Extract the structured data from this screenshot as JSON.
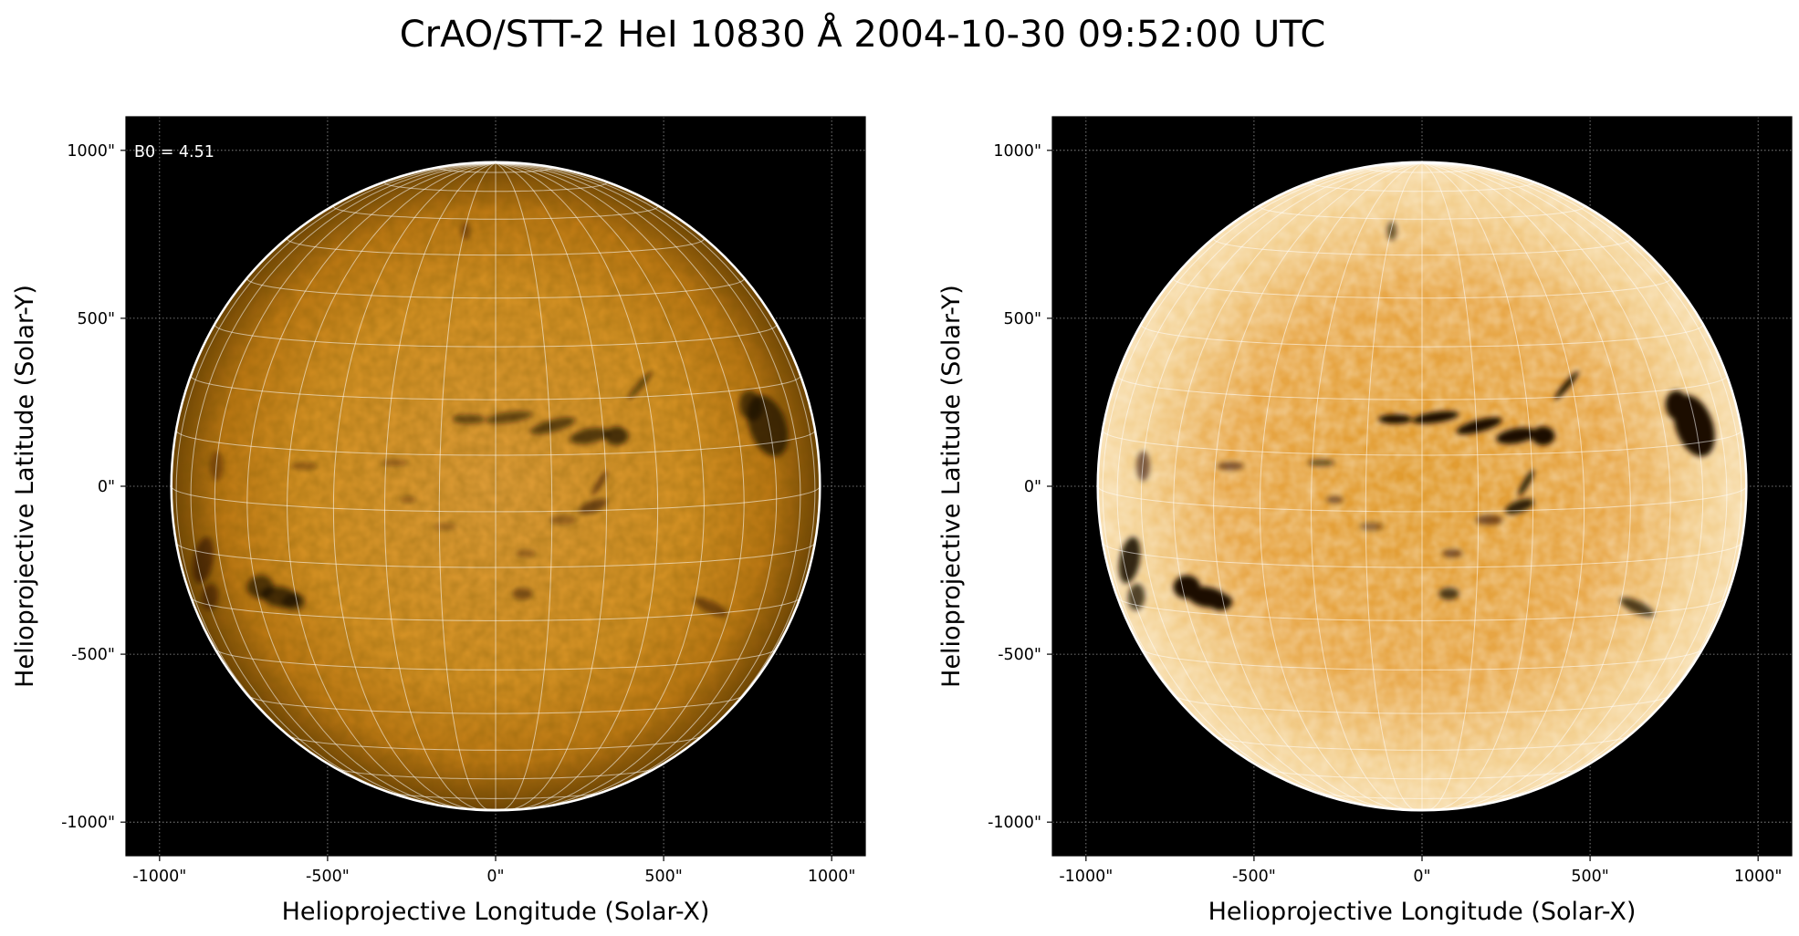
{
  "figure": {
    "title": "CrAO/STT-2 HeI 10830 Å 2004-10-30 09:52:00 UTC"
  },
  "colors": {
    "background": "#000000",
    "disk_center": "#e7a235",
    "disk_limb": "#6e4304",
    "filament": "#1a0b00",
    "limb_circle": "#ffffff",
    "coord_grid": "#ffffff"
  },
  "panels": [
    {
      "xlabel": "Helioprojective Longitude (Solar-X)",
      "ylabel": "Helioprojective Latitude (Solar-Y)",
      "annotation": "B0 = 4.51",
      "variant": "original",
      "xticks": [
        "-1000\"",
        "-500\"",
        "0\"",
        "500\"",
        "1000\""
      ],
      "yticks": [
        "1000\"",
        "500\"",
        "0\"",
        "-500\"",
        "-1000\""
      ]
    },
    {
      "xlabel": "Helioprojective Longitude (Solar-X)",
      "ylabel": "Helioprojective Latitude (Solar-Y)",
      "annotation": "",
      "variant": "enhanced",
      "xticks": [
        "-1000\"",
        "-500\"",
        "0\"",
        "500\"",
        "1000\""
      ],
      "yticks": [
        "1000\"",
        "500\"",
        "0\"",
        "-500\"",
        "-1000\""
      ]
    }
  ],
  "axes": {
    "tick_values": [
      -1000,
      -500,
      0,
      500,
      1000
    ],
    "xlim": [
      -1100,
      1100
    ],
    "ylim": [
      -1100,
      1100
    ],
    "solar_radius_arcsec": 965,
    "b0_deg": 4.51
  }
}
